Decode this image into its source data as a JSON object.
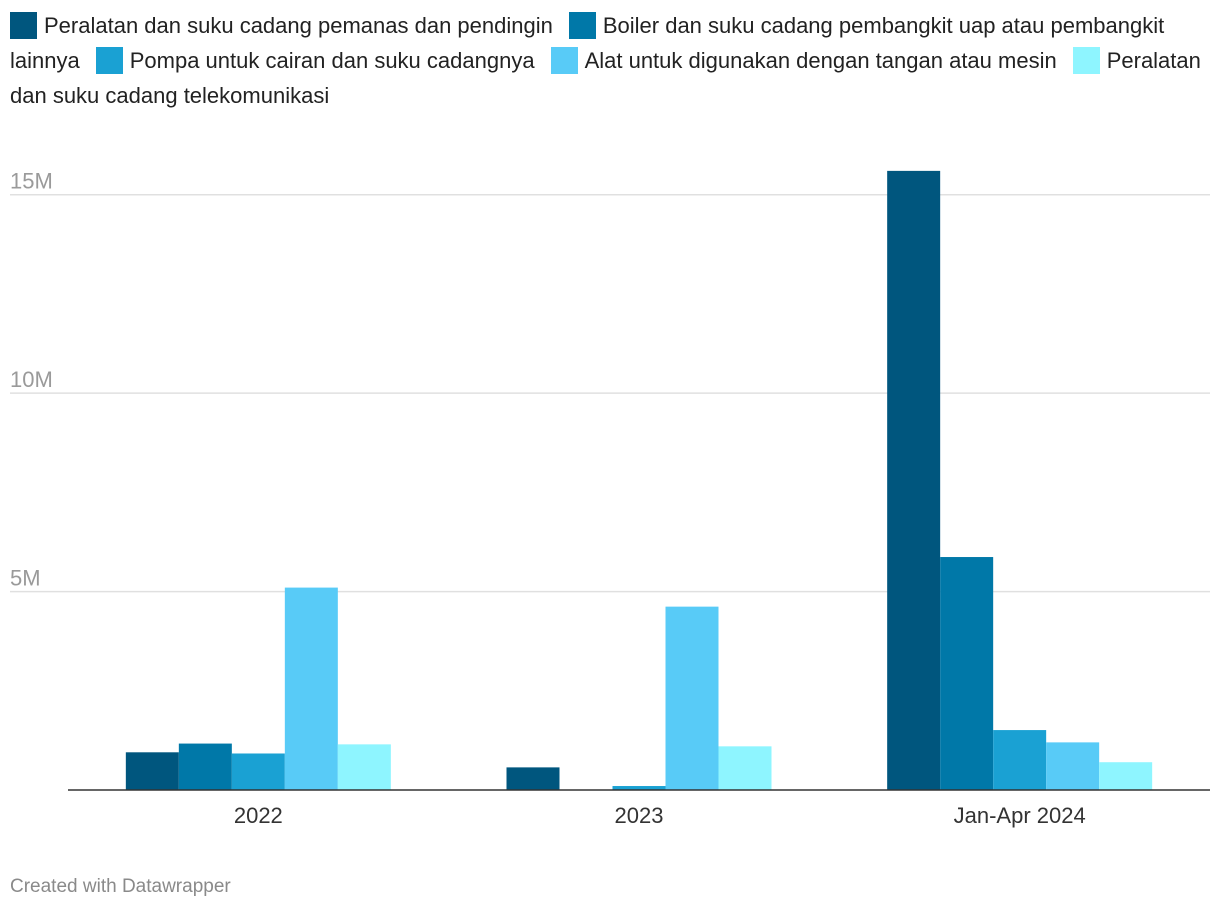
{
  "chart_data": {
    "type": "bar",
    "categories": [
      "2022",
      "2023",
      "Jan-Apr 2024"
    ],
    "series": [
      {
        "name": "Peralatan dan suku cadang pemanas dan pendingin",
        "color": "#00567e",
        "values": [
          950000,
          570000,
          15600000
        ]
      },
      {
        "name": "Boiler dan suku cadang pembangkit uap atau pembangkit lainnya",
        "color": "#0078a8",
        "values": [
          1170000,
          0,
          5870000
        ]
      },
      {
        "name": "Pompa untuk cairan dan suku cadangnya",
        "color": "#1aa1d3",
        "values": [
          920000,
          100000,
          1510000
        ]
      },
      {
        "name": "Alat untuk digunakan dengan tangan atau mesin",
        "color": "#58cbf7",
        "values": [
          5100000,
          4620000,
          1200000
        ]
      },
      {
        "name": "Peralatan dan suku cadang telekomunikasi",
        "color": "#8ef5ff",
        "values": [
          1150000,
          1100000,
          700000
        ]
      }
    ],
    "yticks": [
      {
        "value": 5000000,
        "label": "5M"
      },
      {
        "value": 10000000,
        "label": "10M"
      },
      {
        "value": 15000000,
        "label": "15M"
      }
    ],
    "ylim": [
      0,
      16000000
    ],
    "grid": true,
    "legend_position": "top",
    "title": "",
    "xlabel": "",
    "ylabel": ""
  },
  "credit": "Created with Datawrapper"
}
